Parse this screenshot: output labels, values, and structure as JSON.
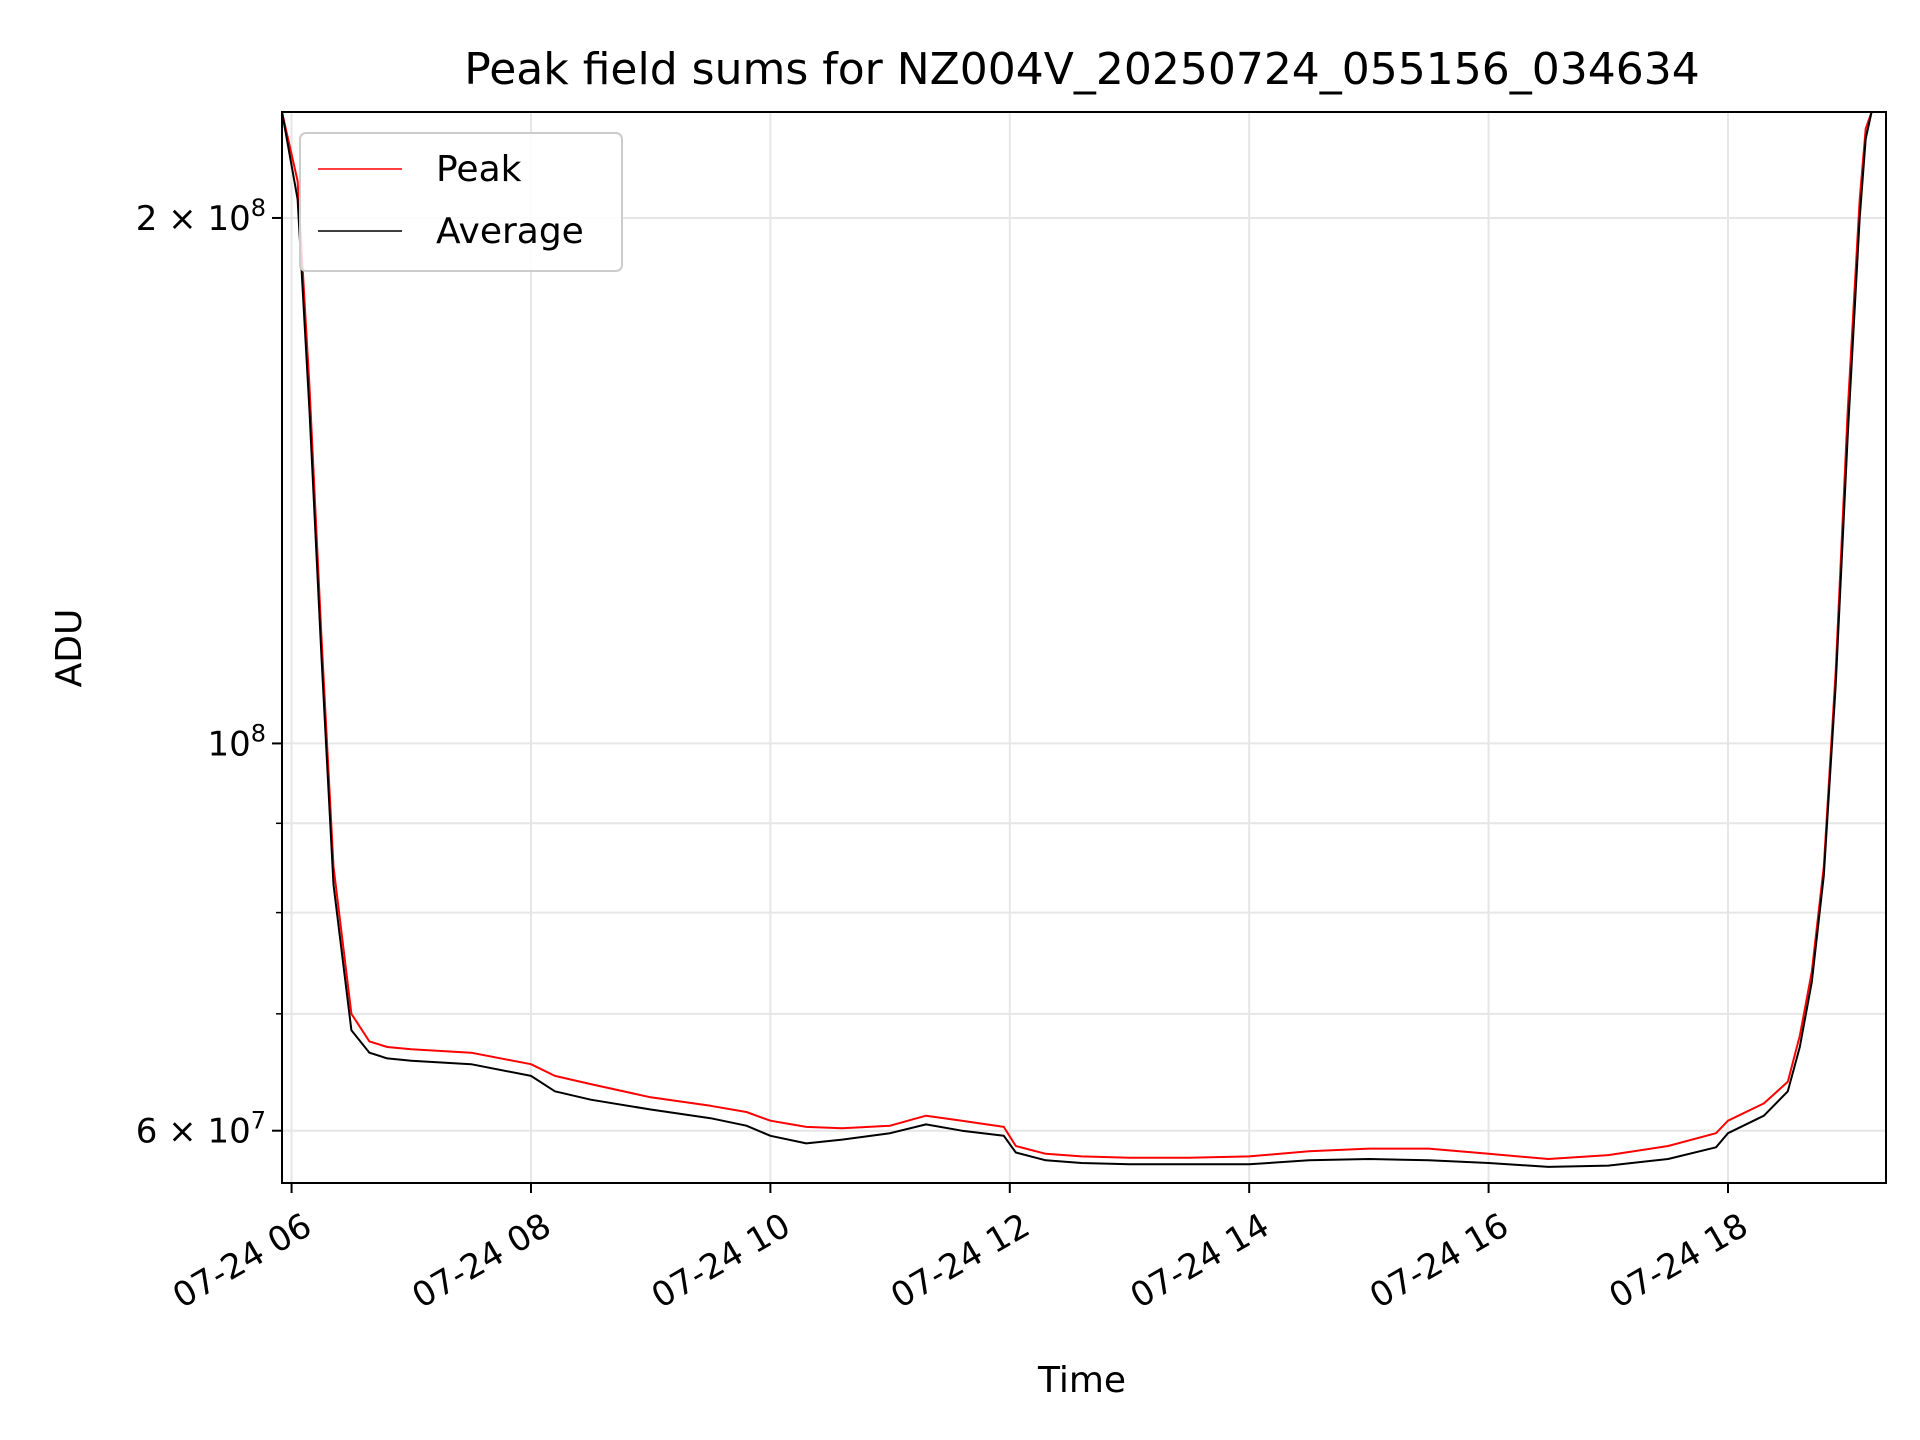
{
  "chart_data": {
    "type": "line",
    "title": "Peak field sums for NZ004V_20250724_055156_034634",
    "xlabel": "Time",
    "ylabel": "ADU",
    "yscale": "log",
    "grid": true,
    "legend_position": "top-left",
    "x_ticks": [
      "07-24 06",
      "07-24 08",
      "07-24 10",
      "07-24 12",
      "07-24 14",
      "07-24 16",
      "07-24 18"
    ],
    "x_tick_hours": [
      6,
      8,
      10,
      12,
      14,
      16,
      18
    ],
    "xlim_hours": [
      5.92,
      19.32
    ],
    "ylim": [
      56000000,
      230000000
    ],
    "y_major_ticks": [
      {
        "value": 60000000,
        "mantissa": "6",
        "power": "7"
      },
      {
        "value": 100000000,
        "mantissa": "",
        "power": "8"
      },
      {
        "value": 200000000,
        "mantissa": "2",
        "power": "8"
      }
    ],
    "y_minor_ticks": [
      70000000,
      80000000,
      90000000
    ],
    "series": [
      {
        "name": "Peak",
        "color": "#ff0000",
        "x_hours": [
          5.92,
          6.05,
          6.15,
          6.25,
          6.35,
          6.5,
          6.65,
          6.8,
          7.0,
          7.5,
          8.0,
          8.2,
          8.5,
          9.0,
          9.5,
          9.8,
          10.0,
          10.3,
          10.6,
          11.0,
          11.3,
          11.6,
          11.95,
          12.05,
          12.3,
          12.6,
          13.0,
          13.5,
          14.0,
          14.5,
          15.0,
          15.5,
          16.0,
          16.5,
          17.0,
          17.5,
          17.9,
          18.0,
          18.3,
          18.5,
          18.6,
          18.7,
          18.8,
          18.9,
          19.0,
          19.1,
          19.15,
          19.2
        ],
        "values": [
          230000000,
          210000000,
          160000000,
          115000000,
          85000000,
          70000000,
          67500000,
          67000000,
          66800000,
          66500000,
          65500000,
          64500000,
          63800000,
          62700000,
          62000000,
          61500000,
          60800000,
          60300000,
          60200000,
          60400000,
          61200000,
          60800000,
          60300000,
          58800000,
          58200000,
          58000000,
          57900000,
          57900000,
          58000000,
          58400000,
          58600000,
          58600000,
          58200000,
          57800000,
          58100000,
          58800000,
          59800000,
          60800000,
          62200000,
          64000000,
          68000000,
          74000000,
          85000000,
          110000000,
          155000000,
          205000000,
          225000000,
          230000000
        ]
      },
      {
        "name": "Average",
        "color": "#000000",
        "x_hours": [
          5.92,
          6.05,
          6.15,
          6.25,
          6.35,
          6.5,
          6.65,
          6.8,
          7.0,
          7.5,
          8.0,
          8.2,
          8.5,
          9.0,
          9.5,
          9.8,
          10.0,
          10.3,
          10.6,
          11.0,
          11.3,
          11.6,
          11.95,
          12.05,
          12.3,
          12.6,
          13.0,
          13.5,
          14.0,
          14.5,
          15.0,
          15.5,
          16.0,
          16.5,
          17.0,
          17.5,
          17.9,
          18.0,
          18.3,
          18.5,
          18.6,
          18.7,
          18.8,
          18.9,
          19.0,
          19.1,
          19.15,
          19.2
        ],
        "values": [
          230000000,
          205000000,
          155000000,
          112000000,
          83000000,
          68500000,
          66500000,
          66000000,
          65800000,
          65500000,
          64500000,
          63200000,
          62500000,
          61700000,
          61000000,
          60400000,
          59600000,
          59000000,
          59300000,
          59800000,
          60500000,
          60000000,
          59600000,
          58300000,
          57700000,
          57500000,
          57400000,
          57400000,
          57400000,
          57700000,
          57800000,
          57700000,
          57500000,
          57200000,
          57300000,
          57800000,
          58700000,
          59800000,
          61200000,
          63200000,
          67000000,
          73000000,
          84000000,
          108000000,
          150000000,
          200000000,
          222000000,
          230000000
        ]
      }
    ]
  }
}
